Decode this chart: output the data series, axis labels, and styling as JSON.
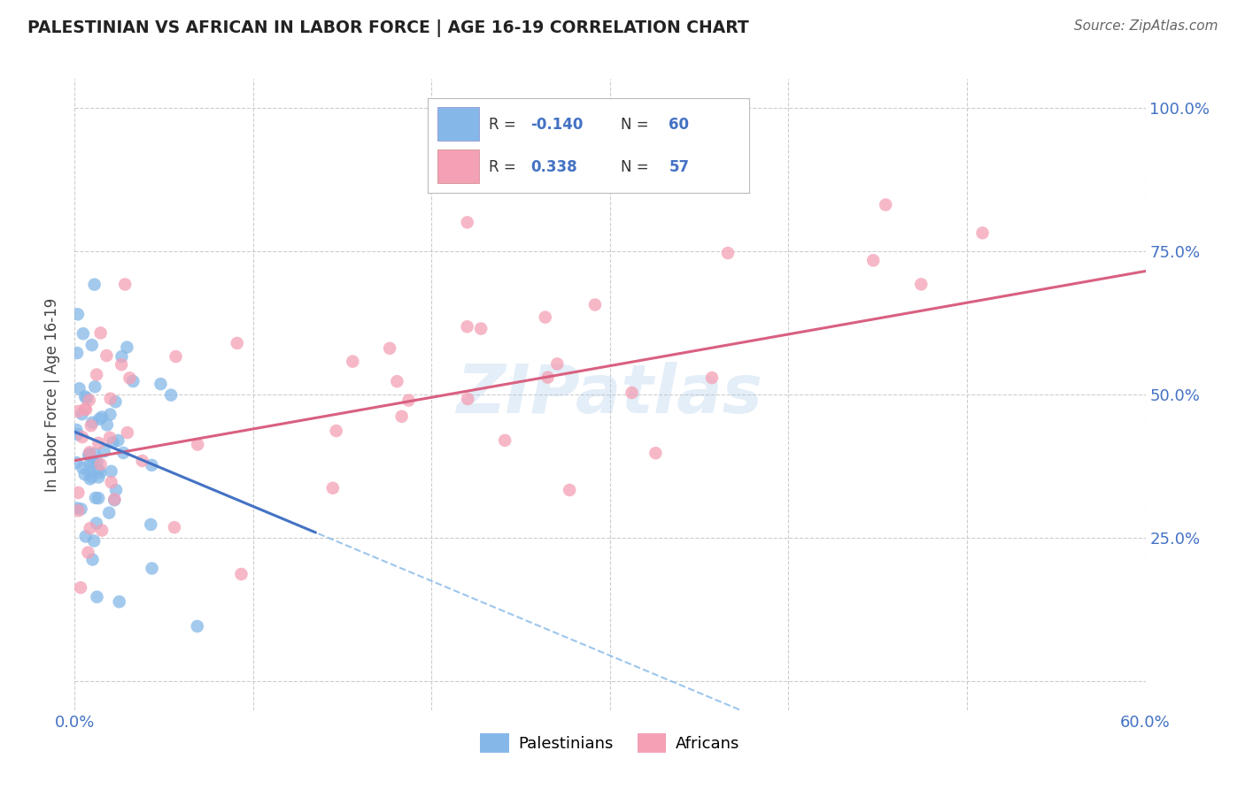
{
  "title": "PALESTINIAN VS AFRICAN IN LABOR FORCE | AGE 16-19 CORRELATION CHART",
  "source": "Source: ZipAtlas.com",
  "ylabel": "In Labor Force | Age 16-19",
  "xlim": [
    0.0,
    0.6
  ],
  "ylim": [
    -0.05,
    1.05
  ],
  "legend_label1": "Palestinians",
  "legend_label2": "Africans",
  "r1": "-0.140",
  "n1": "60",
  "r2": "0.338",
  "n2": "57",
  "color_blue": "#85b8e8",
  "color_pink": "#f4a0b5",
  "color_blue_line": "#4472c4",
  "color_pink_line": "#d96080",
  "color_blue_text": "#4472c4",
  "background_color": "#ffffff",
  "grid_color": "#c8c8c8",
  "watermark": "ZIPatlas"
}
